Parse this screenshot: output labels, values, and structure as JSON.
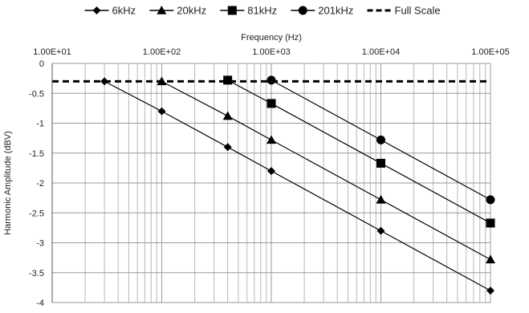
{
  "chart_data": {
    "type": "line",
    "xlabel": "Frequency (Hz)",
    "ylabel": "Harmonic Amplitude (dBV)",
    "x_scale": "log",
    "x_axis_position": "top",
    "xlim": [
      10,
      100000
    ],
    "ylim": [
      -4,
      0
    ],
    "x_ticks": [
      10,
      100,
      1000,
      10000,
      100000
    ],
    "x_tick_labels": [
      "1.00E+01",
      "1.00E+02",
      "1.00E+03",
      "1.00E+04",
      "1.00E+05"
    ],
    "y_ticks": [
      0,
      -0.5,
      -1,
      -1.5,
      -2,
      -2.5,
      -3,
      -3.5,
      -4
    ],
    "y_tick_labels": [
      "0",
      "-0.5",
      "-1",
      "-1.5",
      "-2",
      "-2.5",
      "-3",
      "-3.5",
      "-4"
    ],
    "grid": true,
    "legend_position": "top",
    "series": [
      {
        "name": "6kHz",
        "marker": "diamond",
        "color": "#000000",
        "x": [
          30,
          100,
          400,
          1000,
          10000,
          100000
        ],
        "y": [
          -0.3,
          -0.8,
          -1.4,
          -1.8,
          -2.8,
          -3.8
        ]
      },
      {
        "name": "20kHz",
        "marker": "triangle",
        "color": "#000000",
        "x": [
          100,
          400,
          1000,
          10000,
          100000
        ],
        "y": [
          -0.3,
          -0.88,
          -1.28,
          -2.28,
          -3.28
        ]
      },
      {
        "name": "81kHz",
        "marker": "square",
        "color": "#000000",
        "x": [
          400,
          1000,
          10000,
          100000
        ],
        "y": [
          -0.28,
          -0.67,
          -1.67,
          -2.67
        ]
      },
      {
        "name": "201kHz",
        "marker": "circle",
        "color": "#000000",
        "x": [
          1000,
          10000,
          100000
        ],
        "y": [
          -0.28,
          -1.28,
          -2.28
        ]
      },
      {
        "name": "Full Scale",
        "marker": "none",
        "dashed": true,
        "color": "#000000",
        "x": [
          10,
          100000
        ],
        "y": [
          -0.3,
          -0.3
        ]
      }
    ]
  }
}
